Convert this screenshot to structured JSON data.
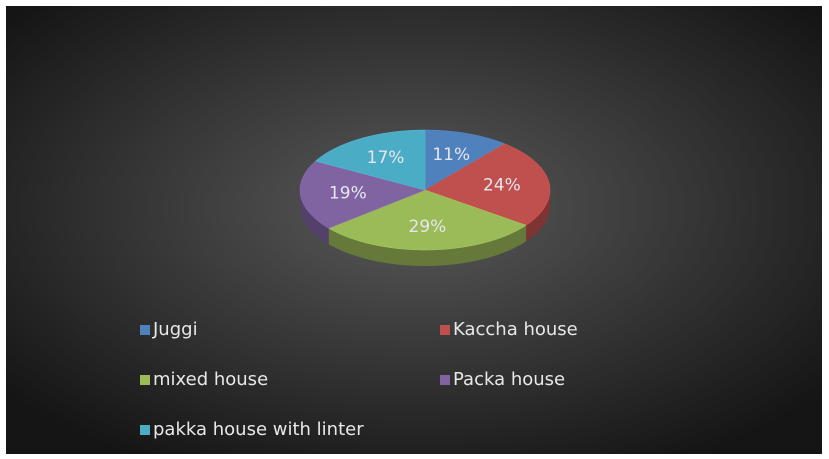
{
  "chart_data": {
    "type": "pie",
    "categories": [
      "Juggi",
      "Kaccha house",
      "mixed house",
      "Packa house",
      "pakka house with  linter"
    ],
    "values": [
      11,
      24,
      29,
      19,
      17
    ],
    "value_labels": [
      "11%",
      "24%",
      "29%",
      "19%",
      "17%"
    ],
    "colors": [
      "#4f81bd",
      "#c0504d",
      "#9bbb59",
      "#8064a2",
      "#4bacc6"
    ],
    "legend": "bottom"
  }
}
